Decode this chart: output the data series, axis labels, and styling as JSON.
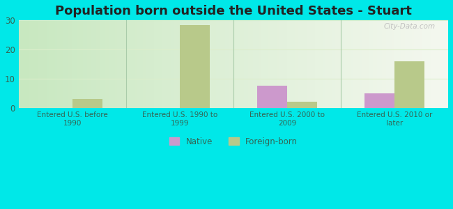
{
  "title": "Population born outside the United States - Stuart",
  "categories": [
    "Entered U.S. before\n1990",
    "Entered U.S. 1990 to\n1999",
    "Entered U.S. 2000 to\n2009",
    "Entered U.S. 2010 or\nlater"
  ],
  "native_values": [
    0,
    0,
    7.5,
    5.0
  ],
  "foreign_values": [
    3.0,
    28.5,
    2.0,
    16.0
  ],
  "native_color": "#cc99cc",
  "foreign_color": "#b8c98a",
  "background_color": "#00e8e8",
  "ylim": [
    0,
    30
  ],
  "yticks": [
    0,
    10,
    20,
    30
  ],
  "bar_width": 0.28,
  "legend_native": "Native",
  "legend_foreign": "Foreign-born",
  "watermark": "City-Data.com",
  "title_fontsize": 13,
  "tick_color": "#336655",
  "grid_color": "#ddeecc",
  "divider_color": "#aaccaa"
}
